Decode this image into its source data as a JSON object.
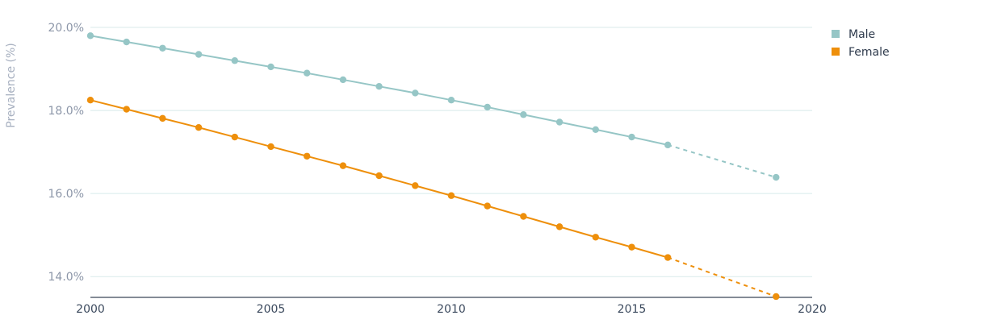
{
  "chart_data": {
    "type": "line",
    "title": "",
    "xlabel": "",
    "ylabel": "Prevalence (%)",
    "xlim": [
      2000,
      2020
    ],
    "ylim": [
      13.5,
      20.0
    ],
    "x_ticks": [
      2000,
      2005,
      2010,
      2015,
      2020
    ],
    "x_tick_labels": [
      "2000",
      "2005",
      "2010",
      "2015",
      "2020"
    ],
    "y_ticks": [
      14,
      16,
      18,
      20
    ],
    "y_tick_labels": [
      "14.0%",
      "16.0%",
      "18.0%",
      "20.0%"
    ],
    "grid": true,
    "legend_position": "top-right",
    "series": [
      {
        "name": "Male",
        "color": "#96c6c6",
        "x": [
          2000,
          2001,
          2002,
          2003,
          2004,
          2005,
          2006,
          2007,
          2008,
          2009,
          2010,
          2011,
          2012,
          2013,
          2014,
          2015,
          2016
        ],
        "values": [
          19.8,
          19.65,
          19.5,
          19.35,
          19.2,
          19.05,
          18.9,
          18.74,
          18.58,
          18.42,
          18.25,
          18.08,
          17.9,
          17.72,
          17.54,
          17.36,
          17.17
        ],
        "projection": {
          "x": [
            2016,
            2019
          ],
          "values": [
            17.17,
            16.39
          ]
        }
      },
      {
        "name": "Female",
        "color": "#ee8f0b",
        "x": [
          2000,
          2001,
          2002,
          2003,
          2004,
          2005,
          2006,
          2007,
          2008,
          2009,
          2010,
          2011,
          2012,
          2013,
          2014,
          2015,
          2016
        ],
        "values": [
          18.25,
          18.03,
          17.81,
          17.59,
          17.36,
          17.13,
          16.9,
          16.67,
          16.43,
          16.19,
          15.95,
          15.7,
          15.45,
          15.2,
          14.95,
          14.71,
          14.46
        ],
        "projection": {
          "x": [
            2016,
            2019
          ],
          "values": [
            14.46,
            13.52
          ]
        }
      }
    ]
  }
}
